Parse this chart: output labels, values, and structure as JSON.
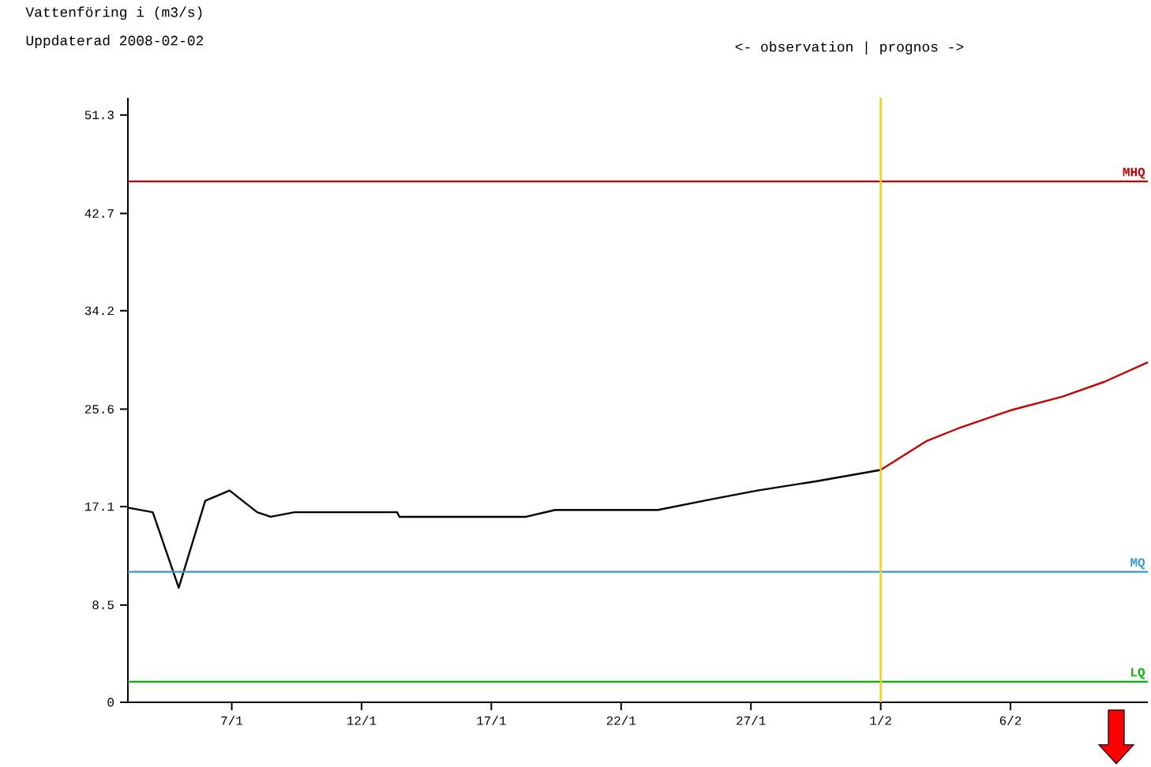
{
  "chart_data": {
    "type": "line",
    "title": "Vattenföring i (m3/s)",
    "subtitle": "Uppdaterad 2008-02-02",
    "annotations": [
      "<- observation | prognos ->"
    ],
    "xlim": [
      "2008-01-03",
      "2008-02-11T07:00"
    ],
    "xticks": [
      {
        "value": "2008-01-07",
        "label": "7/1"
      },
      {
        "value": "2008-01-12",
        "label": "12/1"
      },
      {
        "value": "2008-01-17",
        "label": "17/1"
      },
      {
        "value": "2008-01-22",
        "label": "22/1"
      },
      {
        "value": "2008-01-27",
        "label": "27/1"
      },
      {
        "value": "2008-02-01",
        "label": "1/2"
      },
      {
        "value": "2008-02-06",
        "label": "6/2"
      }
    ],
    "ylim": [
      0,
      52.8
    ],
    "yticks": [
      0,
      8.5,
      17.1,
      25.6,
      34.2,
      42.7,
      51.3
    ],
    "series": [
      {
        "color": "#000000",
        "x": [
          "2008-01-03",
          "2008-01-03T23:00",
          "2008-01-04T23:00",
          "2008-01-05T23:30",
          "2008-01-06T22:00",
          "2008-01-07T23:30",
          "2008-01-08T12:00",
          "2008-01-09T10:00",
          "2008-01-13T09:00",
          "2008-01-13T11:00",
          "2008-01-18T08:00",
          "2008-01-19T11:00",
          "2008-01-23T10:00",
          "2008-01-25T10:00",
          "2008-01-27T06:00",
          "2008-01-29T12:00",
          "2008-02-01"
        ],
        "values": [
          17.0,
          16.6,
          10.0,
          17.6,
          18.5,
          16.6,
          16.2,
          16.6,
          16.6,
          16.2,
          16.2,
          16.8,
          16.8,
          17.7,
          18.5,
          19.3,
          20.3
        ]
      },
      {
        "color": "#cc0000",
        "x": [
          "2008-02-01",
          "2008-02-02T18:00",
          "2008-02-03T23:00",
          "2008-02-06",
          "2008-02-08",
          "2008-02-09T15:00",
          "2008-02-11T07:00"
        ],
        "values": [
          20.3,
          22.8,
          23.9,
          25.5,
          26.7,
          28.0,
          29.7
        ]
      }
    ],
    "ref_lines": [
      {
        "axis": "y",
        "value": 45.5,
        "label": "MHQ",
        "color": "#cc0000"
      },
      {
        "axis": "y",
        "value": 11.4,
        "label": "MQ",
        "color": "#3399cc"
      },
      {
        "axis": "y",
        "value": 1.8,
        "label": "LQ",
        "color": "#00bb00"
      },
      {
        "axis": "x",
        "value": "2008-02-01",
        "color": "#ffcc00"
      }
    ],
    "grid": false,
    "marker": "none",
    "line_style": "solid"
  }
}
